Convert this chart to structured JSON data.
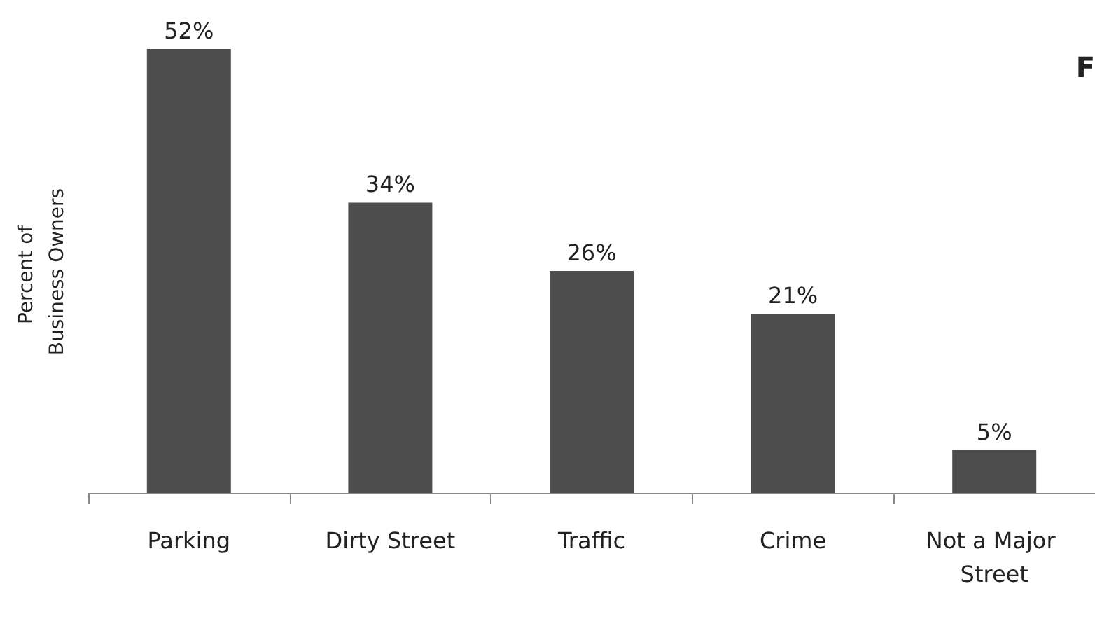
{
  "chart_data": {
    "type": "bar",
    "ylabel": "Percent of Business Owners",
    "categories": [
      "Parking",
      "Dirty Street",
      "Traffic",
      "Crime",
      "Not a Major Street"
    ],
    "values": [
      52,
      34,
      26,
      21,
      5
    ],
    "color": "#4d4d4d",
    "value_labels": [
      "52%",
      "34%",
      "26%",
      "21%",
      "5%"
    ],
    "grid": false,
    "annotations": [
      "F"
    ]
  }
}
